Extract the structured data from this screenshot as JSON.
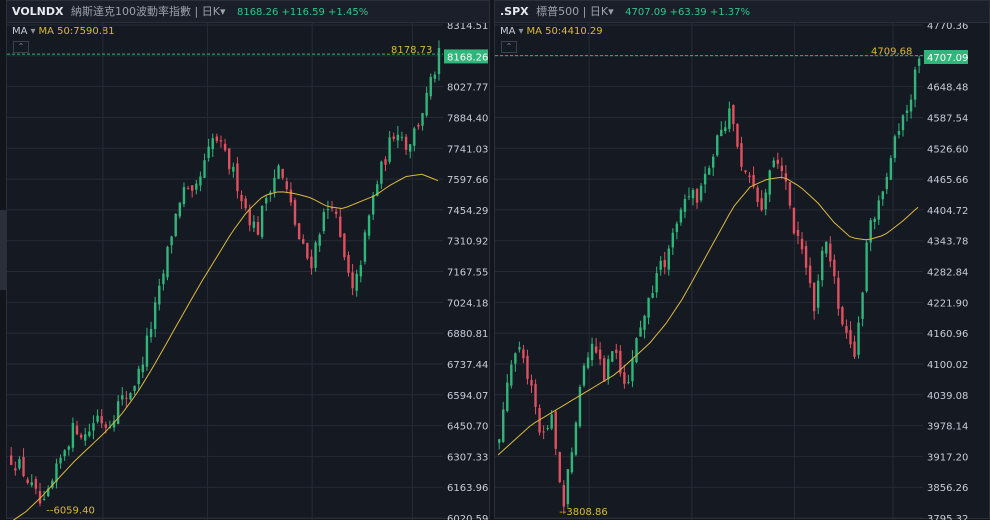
{
  "colors": {
    "up": "#2fb67a",
    "down": "#e0505e",
    "ma": "#d9b93a",
    "grid": "#262b36",
    "axis_text": "#c7ccd6",
    "last_bg": "#2fb67a"
  },
  "left": {
    "symbol": "VOLNDX",
    "name": "納斯達克100波動率指數",
    "timeframe": "日K",
    "tf_arrow": "▾",
    "quote": "8168.26 +116.59 +1.45%",
    "ma_label": "MA",
    "ma_text": "MA  50:7590.81",
    "collapse_icon": "⌃",
    "last_price": "8168.26",
    "line_label": "8178.73",
    "low_label": "6059.40"
  },
  "right": {
    "symbol": ".SPX",
    "name": "標普500",
    "timeframe": "日K",
    "tf_arrow": "▾",
    "quote": "4707.09 +63.39 +1.37%",
    "ma_label": "MA",
    "ma_text": "MA  50:4410.29",
    "collapse_icon": "⌃",
    "last_price": "4707.09",
    "line_label": "4709.68",
    "low_label": "3808.86"
  },
  "chart_data": [
    {
      "type": "candlestick",
      "symbol": "VOLNDX",
      "y_ticks": [
        8314.51,
        8171.14,
        8027.77,
        7884.4,
        7741.03,
        7597.66,
        7454.29,
        7310.92,
        7167.55,
        7024.18,
        6880.81,
        6737.44,
        6594.07,
        6450.7,
        6307.33,
        6163.96,
        6020.59
      ],
      "y_tick_labels": [
        "8314.51",
        "8168.26",
        "8027.77",
        "7884.40",
        "7741.03",
        "7597.66",
        "7454.29",
        "7310.92",
        "7167.55",
        "7024.18",
        "6880.81",
        "6737.44",
        "6594.07",
        "6450.70",
        "6307.33",
        "6163.96",
        "6020.59"
      ],
      "ylim": [
        6020.59,
        8314.51
      ],
      "close_path": [
        6300,
        6250,
        6150,
        6059.4,
        6200,
        6350,
        6450,
        6400,
        6500,
        6450,
        6550,
        6600,
        6700,
        6900,
        7100,
        7350,
        7550,
        7500,
        7650,
        7800,
        7700,
        7600,
        7450,
        7350,
        7550,
        7650,
        7500,
        7300,
        7200,
        7400,
        7500,
        7250,
        7050,
        7300,
        7550,
        7700,
        7850,
        7750,
        7850,
        8000,
        8168.26
      ],
      "ma_path": [
        6000,
        6050,
        6120,
        6200,
        6280,
        6350,
        6420,
        6500,
        6600,
        6720,
        6850,
        6980,
        7110,
        7230,
        7350,
        7450,
        7520,
        7540,
        7530,
        7510,
        7470,
        7460,
        7490,
        7520,
        7570,
        7610,
        7620,
        7590
      ],
      "ma_value": 7590.81,
      "last": 8168.26,
      "high_line": 8178.73,
      "low": 6059.4
    },
    {
      "type": "candlestick",
      "symbol": ".SPX",
      "y_ticks": [
        4770.36,
        4709.42,
        4648.48,
        4587.54,
        4526.6,
        4465.66,
        4404.72,
        4343.78,
        4282.84,
        4221.9,
        4160.96,
        4100.02,
        4039.08,
        3978.14,
        3917.2,
        3856.26,
        3795.32
      ],
      "y_tick_labels": [
        "4770.36",
        "4707.09",
        "4648.48",
        "4587.54",
        "4526.60",
        "4465.66",
        "4404.72",
        "4343.78",
        "4282.84",
        "4221.90",
        "4160.96",
        "4100.02",
        "4039.08",
        "3978.14",
        "3917.20",
        "3856.26",
        "3795.32"
      ],
      "ylim": [
        3795.32,
        4770.36
      ],
      "close_path": [
        3950,
        4100,
        4150,
        4050,
        3950,
        4000,
        3808.86,
        3950,
        4100,
        4150,
        4080,
        4130,
        4050,
        4150,
        4200,
        4280,
        4300,
        4400,
        4450,
        4420,
        4500,
        4550,
        4600,
        4500,
        4450,
        4400,
        4520,
        4480,
        4380,
        4300,
        4220,
        4350,
        4250,
        4150,
        4110,
        4350,
        4420,
        4480,
        4560,
        4600,
        4707.09
      ],
      "ma_path": [
        3920,
        3950,
        3980,
        4000,
        4020,
        4040,
        4060,
        4080,
        4110,
        4140,
        4180,
        4230,
        4290,
        4350,
        4410,
        4450,
        4465,
        4470,
        4450,
        4420,
        4380,
        4350,
        4345,
        4355,
        4380,
        4410
      ],
      "ma_value": 4410.29,
      "last": 4707.09,
      "high_line": 4709.68,
      "low": 3808.86
    }
  ]
}
